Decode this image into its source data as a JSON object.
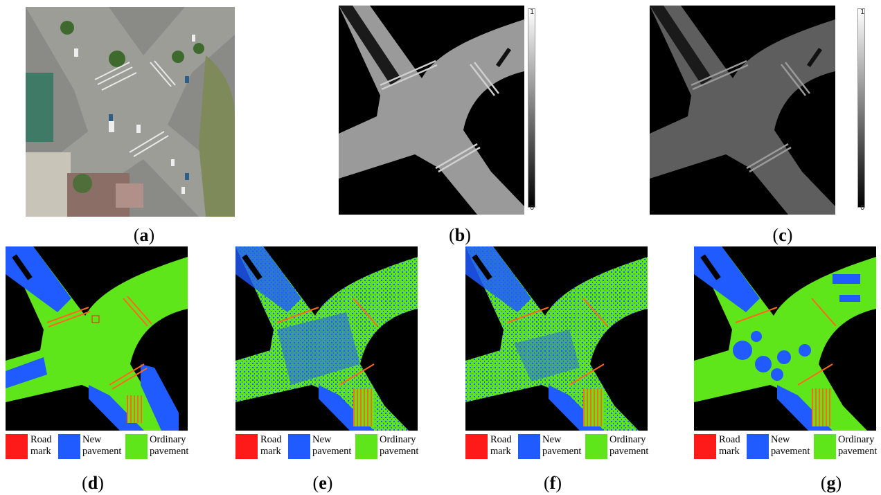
{
  "figure": {
    "panels": [
      {
        "id": "a",
        "caption_open": "(",
        "caption_letter": "a",
        "caption_close": ")",
        "kind": "aerial-photo"
      },
      {
        "id": "b",
        "caption_open": "(",
        "caption_letter": "b",
        "caption_close": ")",
        "kind": "grayscale-map"
      },
      {
        "id": "c",
        "caption_open": "(",
        "caption_letter": "c",
        "caption_close": ")",
        "kind": "grayscale-map"
      },
      {
        "id": "d",
        "caption_open": "(",
        "caption_letter": "d",
        "caption_close": ")",
        "kind": "classification-map"
      },
      {
        "id": "e",
        "caption_open": "(",
        "caption_letter": "e",
        "caption_close": ")",
        "kind": "classification-map"
      },
      {
        "id": "f",
        "caption_open": "(",
        "caption_letter": "f",
        "caption_close": ")",
        "kind": "classification-map"
      },
      {
        "id": "g",
        "caption_open": "(",
        "caption_letter": "g",
        "caption_close": ")",
        "kind": "classification-map"
      }
    ],
    "colorbar": {
      "top_label": "1",
      "bottom_label": "0"
    },
    "legend": {
      "road_mark": {
        "line1": "Road",
        "line2": "mark",
        "color": "#ff1a1a"
      },
      "new_pavement": {
        "line1": "New",
        "line2": "pavement",
        "color": "#1f5bff"
      },
      "ordinary_pavement": {
        "line1": "Ordinary",
        "line2": "pavement",
        "color": "#5fe61a"
      }
    }
  }
}
